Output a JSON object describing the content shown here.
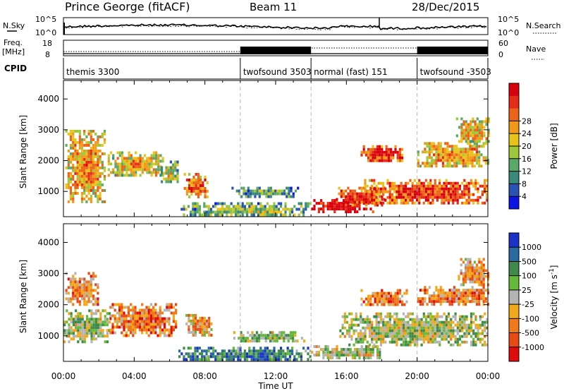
{
  "header": {
    "station": "Prince George (fitACF)",
    "beam": "Beam 11",
    "date": "28/Dec/2015"
  },
  "top_panel": {
    "left_label": "N.Sky",
    "left_ticks": [
      "10^5",
      "10^0"
    ],
    "right_label": "N.Search",
    "right_ticks": [
      "10^5",
      "10^0"
    ]
  },
  "freq_panel": {
    "left_label_1": "Freq.",
    "left_label_2": "[MHz]",
    "left_ticks": [
      "18",
      "8"
    ],
    "right_label": "Nave",
    "right_ticks": [
      "60",
      "0"
    ]
  },
  "cpid": {
    "label": "CPID",
    "segments": [
      {
        "name": "themis 3300",
        "start_hour": 0
      },
      {
        "name": "twofsound 3503",
        "start_hour": 10
      },
      {
        "name": "normal (fast) 151",
        "start_hour": 14
      },
      {
        "name": "twofsound -3503",
        "start_hour": 20
      }
    ]
  },
  "chart_data": [
    {
      "type": "heatmap",
      "quantity": "power",
      "ylabel": "Slant Range [km]",
      "xlabel": "",
      "xlim_hours": [
        0,
        24
      ],
      "ylim": [
        180,
        4600
      ],
      "y_ticks": [
        1000,
        2000,
        3000,
        4000
      ],
      "colorbar": {
        "label": "Power [dB]",
        "ticks": [
          "4",
          "8",
          "12",
          "16",
          "20",
          "24",
          "28"
        ],
        "colors": [
          "#0a14e6",
          "#2a54b4",
          "#3a8a7a",
          "#5aa86a",
          "#9ec83c",
          "#e8c41a",
          "#f29a18",
          "#ec6418",
          "#e42c16",
          "#d8000c"
        ]
      },
      "series": [
        {
          "start_hour": 0.1,
          "end_hour": 2.3,
          "range_low": 700,
          "range_high": 3000,
          "level": 0.62
        },
        {
          "start_hour": 2.5,
          "end_hour": 5.6,
          "range_low": 1500,
          "range_high": 2300,
          "level": 0.55
        },
        {
          "start_hour": 5.5,
          "end_hour": 6.5,
          "range_low": 1300,
          "range_high": 2000,
          "level": 0.45
        },
        {
          "start_hour": 6.8,
          "end_hour": 8.2,
          "range_low": 800,
          "range_high": 1600,
          "level": 0.72
        },
        {
          "start_hour": 9.5,
          "end_hour": 13.2,
          "range_low": 850,
          "range_high": 1150,
          "level": 0.3
        },
        {
          "start_hour": 6.5,
          "end_hour": 14.0,
          "range_low": 200,
          "range_high": 650,
          "level": 0.35
        },
        {
          "start_hour": 14.0,
          "end_hour": 17.5,
          "range_low": 350,
          "range_high": 750,
          "level": 0.97
        },
        {
          "start_hour": 15.4,
          "end_hour": 18.1,
          "range_low": 550,
          "range_high": 1150,
          "level": 0.8
        },
        {
          "start_hour": 17.0,
          "end_hour": 24.0,
          "range_low": 600,
          "range_high": 1400,
          "level": 0.78
        },
        {
          "start_hour": 16.8,
          "end_hour": 19.2,
          "range_low": 2000,
          "range_high": 2500,
          "level": 0.85
        },
        {
          "start_hour": 20.0,
          "end_hour": 24.0,
          "range_low": 1800,
          "range_high": 2600,
          "level": 0.6
        },
        {
          "start_hour": 22.2,
          "end_hour": 24.0,
          "range_low": 2600,
          "range_high": 3400,
          "level": 0.55
        }
      ]
    },
    {
      "type": "heatmap",
      "quantity": "velocity",
      "ylabel": "Slant Range [km]",
      "xlabel": "Time UT",
      "xlim_hours": [
        0,
        24
      ],
      "ylim": [
        180,
        4600
      ],
      "y_ticks": [
        1000,
        2000,
        3000,
        4000
      ],
      "x_ticks": [
        "00:00",
        "04:00",
        "08:00",
        "12:00",
        "16:00",
        "20:00",
        "00:00"
      ],
      "colorbar": {
        "label": "Velocity [m s^-1]",
        "ticks": [
          "1000",
          "500",
          "100",
          "25",
          "-25",
          "-100",
          "-500",
          "-1000"
        ],
        "colors": [
          "#1a32c8",
          "#2a6aa0",
          "#3e8a4a",
          "#66b838",
          "#b4b4b4",
          "#f2a81c",
          "#ee7a1c",
          "#e84a14",
          "#e00c0c"
        ]
      },
      "series": [
        {
          "start_hour": 0.1,
          "end_hour": 1.9,
          "range_low": 2000,
          "range_high": 3050,
          "level": 0.68
        },
        {
          "start_hour": 0.0,
          "end_hour": 2.6,
          "range_low": 850,
          "range_high": 1850,
          "level": 0.45
        },
        {
          "start_hour": 2.6,
          "end_hour": 6.4,
          "range_low": 1000,
          "range_high": 2050,
          "level": 0.72
        },
        {
          "start_hour": 6.9,
          "end_hour": 8.4,
          "range_low": 1000,
          "range_high": 1700,
          "level": 0.6
        },
        {
          "start_hour": 6.5,
          "end_hour": 14.0,
          "range_low": 200,
          "range_high": 650,
          "level": 0.25
        },
        {
          "start_hour": 9.6,
          "end_hour": 13.6,
          "range_low": 850,
          "range_high": 1150,
          "level": 0.45
        },
        {
          "start_hour": 14.0,
          "end_hour": 18.0,
          "range_low": 300,
          "range_high": 700,
          "level": 0.5
        },
        {
          "start_hour": 15.6,
          "end_hour": 24.0,
          "range_low": 700,
          "range_high": 1750,
          "level": 0.45
        },
        {
          "start_hour": 16.8,
          "end_hour": 19.4,
          "range_low": 2000,
          "range_high": 2500,
          "level": 0.72
        },
        {
          "start_hour": 20.0,
          "end_hour": 24.0,
          "range_low": 2000,
          "range_high": 2600,
          "level": 0.7
        },
        {
          "start_hour": 22.3,
          "end_hour": 24.0,
          "range_low": 2600,
          "range_high": 3500,
          "level": 0.65
        }
      ]
    }
  ]
}
